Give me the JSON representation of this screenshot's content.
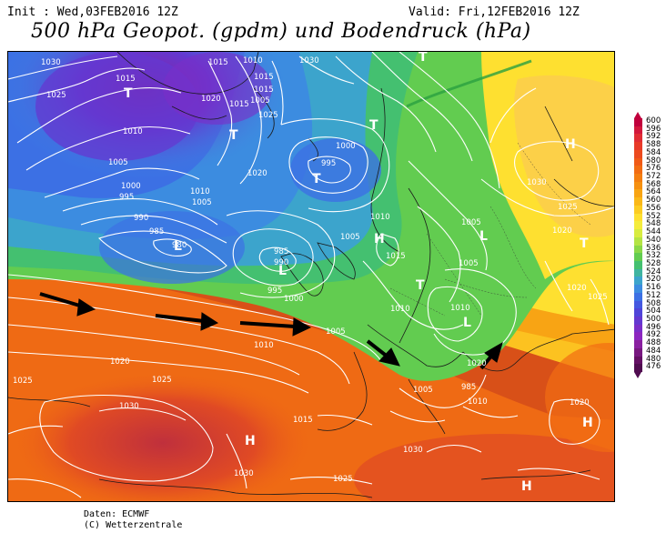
{
  "header": {
    "init": "Init : Wed,03FEB2016 12Z",
    "valid": "Valid: Fri,12FEB2016 12Z",
    "title": "500 hPa Geopot. (gpdm) und Bodendruck (hPa)"
  },
  "credits": {
    "line1": "Daten: ECMWF",
    "line2": "(C) Wetterzentrale"
  },
  "legend": {
    "unit": "gpdm",
    "levels": [
      "600",
      "596",
      "592",
      "588",
      "584",
      "580",
      "576",
      "572",
      "568",
      "564",
      "560",
      "556",
      "552",
      "548",
      "544",
      "540",
      "536",
      "532",
      "528",
      "524",
      "520",
      "516",
      "512",
      "508",
      "504",
      "500",
      "496",
      "492",
      "488",
      "484",
      "480",
      "476"
    ],
    "colors": [
      "#c0003c",
      "#d2183c",
      "#e02c34",
      "#e83a28",
      "#ec4a1e",
      "#f05a16",
      "#f26c12",
      "#f47e10",
      "#f69010",
      "#f8a412",
      "#fab818",
      "#fccc22",
      "#fee030",
      "#f4ec3c",
      "#d8ec40",
      "#b4e444",
      "#8ad848",
      "#62cc50",
      "#44c070",
      "#40b4a0",
      "#3ca4cc",
      "#3c8ce0",
      "#3c70e4",
      "#4458e0",
      "#5044d8",
      "#6438d0",
      "#7a2ec8",
      "#8c26c0",
      "#8a20a0",
      "#781880",
      "#641064",
      "#500c50"
    ]
  },
  "map": {
    "isobar_labels": [
      "1030",
      "1015",
      "1030",
      "1015",
      "1010",
      "1025",
      "1015",
      "1015",
      "1005",
      "1020",
      "1015",
      "1025",
      "1010",
      "1005",
      "1000",
      "995",
      "1000",
      "1020",
      "995",
      "1010",
      "1030",
      "990",
      "1005",
      "1010",
      "985",
      "980",
      "985",
      "990",
      "995",
      "1000",
      "1005",
      "1005",
      "1010",
      "1025",
      "1020",
      "1020",
      "1025",
      "1020",
      "1010",
      "1020",
      "1025",
      "1030",
      "1025",
      "1030",
      "1015",
      "1005",
      "985",
      "1005",
      "1005",
      "1010",
      "1015",
      "1010",
      "1020",
      "1025",
      "1030"
    ],
    "pressure_systems": [
      "T",
      "T",
      "T",
      "T",
      "L",
      "L",
      "H",
      "T",
      "T",
      "L",
      "H",
      "T",
      "H",
      "H",
      "H",
      "L"
    ]
  }
}
